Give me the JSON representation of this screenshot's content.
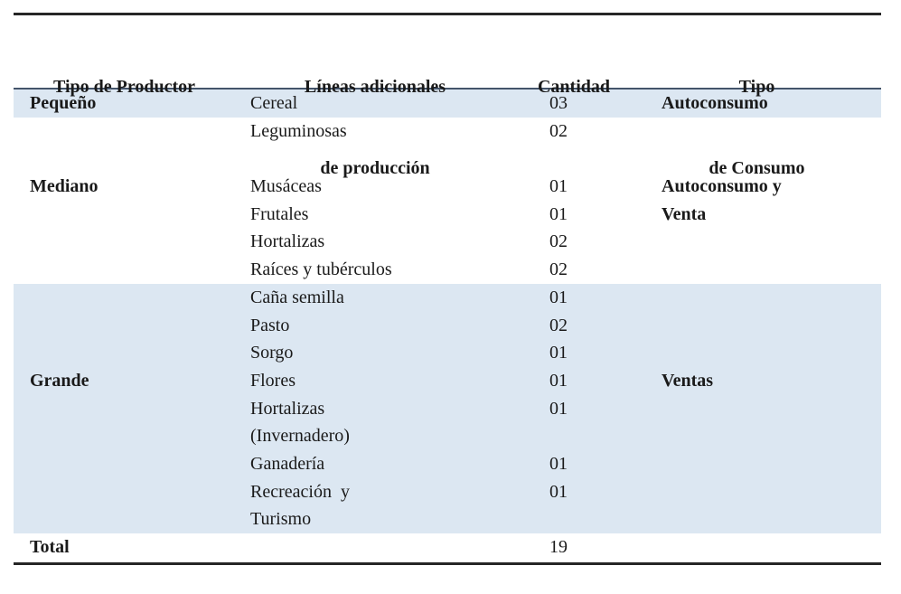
{
  "table": {
    "header": {
      "columns": [
        {
          "line1": "Tipo de Productor",
          "line2": ""
        },
        {
          "line1": "Líneas adicionales",
          "line2": "de producción"
        },
        {
          "line1": "Cantidad",
          "line2": ""
        },
        {
          "line1": "Tipo",
          "line2": "de Consumo"
        }
      ]
    },
    "rows": [
      {
        "producer": "Pequeño",
        "line": "Cereal",
        "qty": "03",
        "consumption": "Autoconsumo",
        "shaded": true
      },
      {
        "producer": "",
        "line": "Leguminosas",
        "qty": "02",
        "consumption": "",
        "shaded": false
      },
      {
        "producer": "",
        "line": "",
        "qty": "",
        "consumption": "",
        "shaded": false
      },
      {
        "producer": "Mediano",
        "line": "Musáceas",
        "qty": "01",
        "consumption": "Autoconsumo y",
        "shaded": false
      },
      {
        "producer": "",
        "line": "Frutales",
        "qty": "01",
        "consumption": "Venta",
        "shaded": false
      },
      {
        "producer": "",
        "line": "Hortalizas",
        "qty": "02",
        "consumption": "",
        "shaded": false
      },
      {
        "producer": "",
        "line": "Raíces y tubérculos",
        "qty": "02",
        "consumption": "",
        "shaded": false
      },
      {
        "producer": "",
        "line": "Caña semilla",
        "qty": "01",
        "consumption": "",
        "shaded": true
      },
      {
        "producer": "",
        "line": "Pasto",
        "qty": "02",
        "consumption": "",
        "shaded": true
      },
      {
        "producer": "",
        "line": "Sorgo",
        "qty": "01",
        "consumption": "",
        "shaded": true
      },
      {
        "producer": "Grande",
        "line": "Flores",
        "qty": "01",
        "consumption": "Ventas",
        "shaded": true
      },
      {
        "producer": "",
        "line": "Hortalizas",
        "qty": "01",
        "consumption": "",
        "shaded": true
      },
      {
        "producer": "",
        "line": "(Invernadero)",
        "qty": "",
        "consumption": "",
        "shaded": true
      },
      {
        "producer": "",
        "line": "Ganadería",
        "qty": "01",
        "consumption": "",
        "shaded": true
      },
      {
        "producer": "",
        "line": "Recreación  y",
        "qty": "01",
        "consumption": "",
        "shaded": true
      },
      {
        "producer": "",
        "line": "Turismo",
        "qty": "",
        "consumption": "",
        "shaded": true
      }
    ],
    "total_row": {
      "label": "Total",
      "qty": "19"
    }
  },
  "colors": {
    "shaded_row": "#DCE7F2",
    "header_rule": "#44546A",
    "border": "#262626"
  }
}
